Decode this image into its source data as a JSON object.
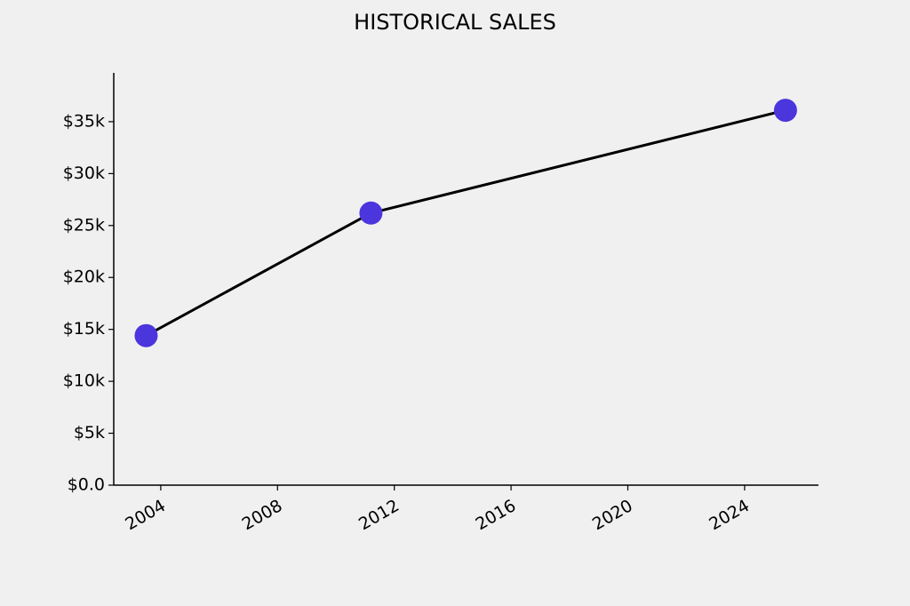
{
  "chart_data": {
    "type": "line",
    "title": "HISTORICAL SALES",
    "x": [
      2003.5,
      2011.2,
      2025.4
    ],
    "values": [
      14400,
      26200,
      36100
    ],
    "color": "#4b35dd",
    "line_color": "#000000",
    "xlim": [
      2002.39,
      2026.53
    ],
    "xticks": [
      2004,
      2008,
      2012,
      2016,
      2020,
      2024
    ],
    "ylim": [
      0,
      39700
    ],
    "yticks": [
      {
        "value": 0,
        "label": "$0.0"
      },
      {
        "value": 5000,
        "label": "$5k"
      },
      {
        "value": 10000,
        "label": "$10k"
      },
      {
        "value": 15000,
        "label": "$15k"
      },
      {
        "value": 20000,
        "label": "$20k"
      },
      {
        "value": 25000,
        "label": "$25k"
      },
      {
        "value": 30000,
        "label": "$30k"
      },
      {
        "value": 35000,
        "label": "$35k"
      }
    ]
  }
}
